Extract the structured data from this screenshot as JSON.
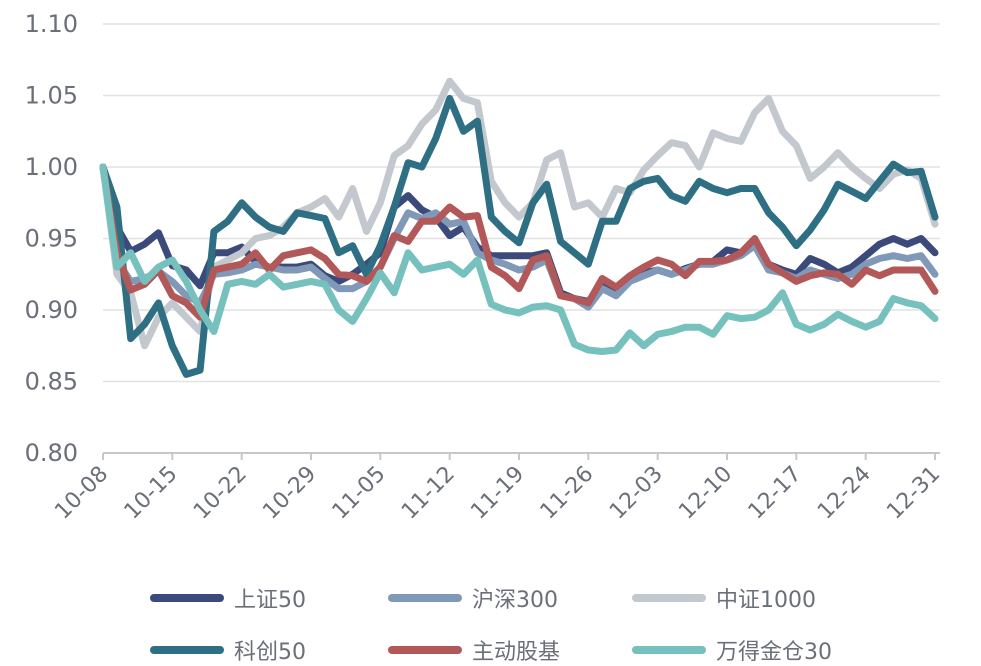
{
  "chart_data": {
    "type": "line",
    "title": "",
    "xlabel": "",
    "ylabel": "",
    "ylim": [
      0.8,
      1.1
    ],
    "yticks": [
      "0.80",
      "0.85",
      "0.90",
      "0.95",
      "1.00",
      "1.05",
      "1.10"
    ],
    "xticks": [
      "10-08",
      "10-15",
      "10-22",
      "10-29",
      "11-05",
      "11-12",
      "11-19",
      "11-26",
      "12-03",
      "12-10",
      "12-17",
      "12-24",
      "12-31"
    ],
    "grid": true,
    "legend_position": "bottom",
    "x": [
      "10-08",
      "10-09",
      "10-10",
      "10-11",
      "10-14",
      "10-15",
      "10-16",
      "10-17",
      "10-18",
      "10-21",
      "10-22",
      "10-23",
      "10-24",
      "10-25",
      "10-28",
      "10-29",
      "10-30",
      "10-31",
      "11-01",
      "11-04",
      "11-05",
      "11-06",
      "11-07",
      "11-08",
      "11-11",
      "11-12",
      "11-13",
      "11-14",
      "11-15",
      "11-18",
      "11-19",
      "11-20",
      "11-21",
      "11-22",
      "11-25",
      "11-26",
      "11-27",
      "11-28",
      "11-29",
      "12-02",
      "12-03",
      "12-04",
      "12-05",
      "12-06",
      "12-09",
      "12-10",
      "12-11",
      "12-12",
      "12-13",
      "12-16",
      "12-17",
      "12-18",
      "12-19",
      "12-20",
      "12-23",
      "12-24",
      "12-25",
      "12-26",
      "12-27",
      "12-30",
      "12-31"
    ],
    "series": [
      {
        "name": "上证50",
        "color": "#3b4a7a",
        "values": [
          1.0,
          0.958,
          0.941,
          0.946,
          0.954,
          0.931,
          0.928,
          0.917,
          0.94,
          0.94,
          0.944,
          0.934,
          0.93,
          0.93,
          0.93,
          0.932,
          0.924,
          0.92,
          0.925,
          0.932,
          0.94,
          0.972,
          0.98,
          0.97,
          0.965,
          0.952,
          0.958,
          0.944,
          0.938,
          0.938,
          0.938,
          0.938,
          0.94,
          0.912,
          0.908,
          0.906,
          0.918,
          0.915,
          0.92,
          0.926,
          0.928,
          0.925,
          0.929,
          0.932,
          0.934,
          0.942,
          0.94,
          0.946,
          0.932,
          0.928,
          0.925,
          0.936,
          0.932,
          0.926,
          0.93,
          0.938,
          0.946,
          0.95,
          0.946,
          0.95,
          0.94
        ]
      },
      {
        "name": "沪深300",
        "color": "#8199b8",
        "values": [
          1.0,
          0.935,
          0.92,
          0.922,
          0.927,
          0.92,
          0.91,
          0.905,
          0.925,
          0.926,
          0.928,
          0.932,
          0.93,
          0.928,
          0.928,
          0.93,
          0.922,
          0.915,
          0.915,
          0.92,
          0.93,
          0.95,
          0.968,
          0.964,
          0.968,
          0.96,
          0.962,
          0.94,
          0.935,
          0.932,
          0.928,
          0.93,
          0.935,
          0.91,
          0.908,
          0.902,
          0.915,
          0.91,
          0.92,
          0.924,
          0.928,
          0.925,
          0.928,
          0.932,
          0.932,
          0.935,
          0.938,
          0.945,
          0.928,
          0.926,
          0.922,
          0.928,
          0.925,
          0.922,
          0.925,
          0.932,
          0.936,
          0.938,
          0.936,
          0.938,
          0.925
        ]
      },
      {
        "name": "中证1000",
        "color": "#c3c8ce",
        "values": [
          1.0,
          0.925,
          0.912,
          0.875,
          0.895,
          0.905,
          0.895,
          0.885,
          0.93,
          0.935,
          0.94,
          0.95,
          0.952,
          0.958,
          0.968,
          0.972,
          0.978,
          0.965,
          0.985,
          0.955,
          0.975,
          1.008,
          1.015,
          1.03,
          1.04,
          1.06,
          1.048,
          1.045,
          0.99,
          0.975,
          0.965,
          0.975,
          1.005,
          1.01,
          0.972,
          0.975,
          0.965,
          0.985,
          0.982,
          0.998,
          1.008,
          1.017,
          1.015,
          1.0,
          1.024,
          1.02,
          1.018,
          1.038,
          1.048,
          1.025,
          1.015,
          0.992,
          1.0,
          1.01,
          1.0,
          0.992,
          0.985,
          0.995,
          0.998,
          0.992,
          0.96
        ]
      },
      {
        "name": "科创50",
        "color": "#2e6f84",
        "values": [
          1.0,
          0.972,
          0.88,
          0.89,
          0.905,
          0.875,
          0.855,
          0.858,
          0.955,
          0.962,
          0.975,
          0.965,
          0.958,
          0.955,
          0.968,
          0.966,
          0.964,
          0.94,
          0.945,
          0.925,
          0.945,
          0.972,
          1.003,
          1.0,
          1.02,
          1.048,
          1.025,
          1.032,
          0.965,
          0.955,
          0.947,
          0.975,
          0.988,
          0.948,
          0.94,
          0.932,
          0.962,
          0.962,
          0.985,
          0.99,
          0.992,
          0.98,
          0.976,
          0.99,
          0.985,
          0.982,
          0.985,
          0.985,
          0.968,
          0.958,
          0.945,
          0.956,
          0.97,
          0.988,
          0.983,
          0.978,
          0.99,
          1.002,
          0.996,
          0.997,
          0.965
        ]
      },
      {
        "name": "主动股基",
        "color": "#b25858",
        "values": [
          1.0,
          0.94,
          0.914,
          0.918,
          0.928,
          0.91,
          0.905,
          0.895,
          0.928,
          0.93,
          0.932,
          0.94,
          0.928,
          0.938,
          0.94,
          0.942,
          0.936,
          0.925,
          0.924,
          0.92,
          0.93,
          0.952,
          0.948,
          0.962,
          0.962,
          0.972,
          0.965,
          0.966,
          0.93,
          0.924,
          0.915,
          0.935,
          0.938,
          0.91,
          0.908,
          0.905,
          0.922,
          0.916,
          0.924,
          0.93,
          0.935,
          0.932,
          0.924,
          0.934,
          0.934,
          0.935,
          0.94,
          0.95,
          0.932,
          0.926,
          0.92,
          0.924,
          0.926,
          0.925,
          0.918,
          0.928,
          0.924,
          0.928,
          0.928,
          0.928,
          0.913
        ]
      },
      {
        "name": "万得金仓30",
        "color": "#76c1be",
        "values": [
          1.0,
          0.93,
          0.94,
          0.92,
          0.93,
          0.935,
          0.92,
          0.9,
          0.885,
          0.918,
          0.92,
          0.918,
          0.925,
          0.916,
          0.918,
          0.92,
          0.918,
          0.9,
          0.892,
          0.908,
          0.926,
          0.912,
          0.94,
          0.928,
          0.93,
          0.932,
          0.925,
          0.935,
          0.904,
          0.9,
          0.898,
          0.902,
          0.903,
          0.9,
          0.876,
          0.872,
          0.871,
          0.872,
          0.884,
          0.875,
          0.883,
          0.885,
          0.888,
          0.888,
          0.883,
          0.896,
          0.894,
          0.895,
          0.9,
          0.912,
          0.89,
          0.886,
          0.89,
          0.897,
          0.892,
          0.888,
          0.892,
          0.908,
          0.905,
          0.903,
          0.894
        ]
      }
    ]
  }
}
